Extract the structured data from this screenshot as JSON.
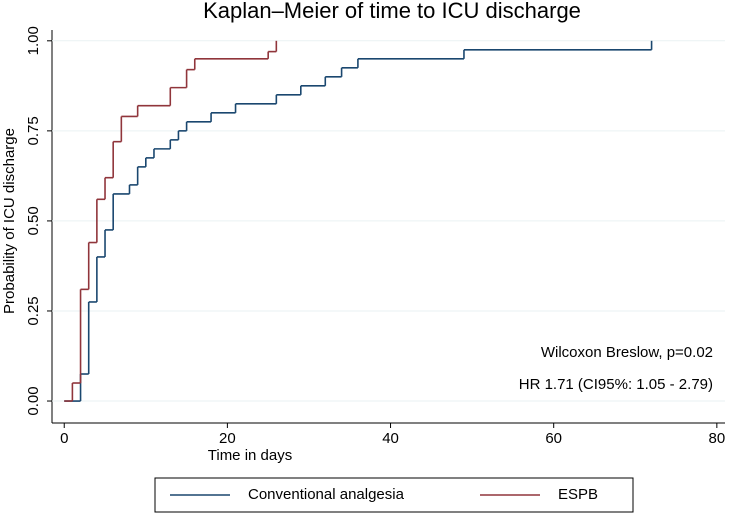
{
  "chart_data": {
    "type": "step",
    "title": "Kaplan–Meier of time to ICU discharge",
    "x_label": "Time in days",
    "y_label": "Probability of ICU discharge",
    "annotations": [
      "Wilcoxon Breslow, p=0.02",
      "HR 1.71 (CI95%: 1.05 - 2.79)"
    ],
    "xlim": [
      -1.5,
      81
    ],
    "ylim": [
      -0.061,
      1.03
    ],
    "xticks": [
      0,
      20,
      40,
      60,
      80
    ],
    "yticks": [
      {
        "value": 0,
        "label": "0.00"
      },
      {
        "value": 0.25,
        "label": "0.25"
      },
      {
        "value": 0.5,
        "label": "0.50"
      },
      {
        "value": 0.75,
        "label": "0.75"
      },
      {
        "value": 1,
        "label": "1.00"
      }
    ],
    "grid": true,
    "legend": "bottom",
    "series": [
      {
        "name": "Conventional analgesia",
        "color": "#1a476f",
        "x": [
          0,
          2,
          3,
          4,
          5,
          6,
          8,
          9,
          10,
          11,
          13,
          14,
          15,
          18,
          21,
          26,
          29,
          32,
          34,
          36,
          49,
          72
        ],
        "values": [
          0,
          0.075,
          0.275,
          0.4,
          0.475,
          0.575,
          0.6,
          0.65,
          0.675,
          0.7,
          0.725,
          0.75,
          0.775,
          0.8,
          0.825,
          0.85,
          0.875,
          0.9,
          0.925,
          0.95,
          0.975,
          1
        ]
      },
      {
        "name": "ESPB",
        "color": "#90353b",
        "x": [
          0,
          1,
          2,
          3,
          4,
          5,
          6,
          7,
          9,
          13,
          15,
          16,
          25,
          26
        ],
        "values": [
          0,
          0.05,
          0.31,
          0.44,
          0.56,
          0.62,
          0.72,
          0.79,
          0.82,
          0.87,
          0.92,
          0.95,
          0.97,
          1
        ]
      }
    ]
  }
}
